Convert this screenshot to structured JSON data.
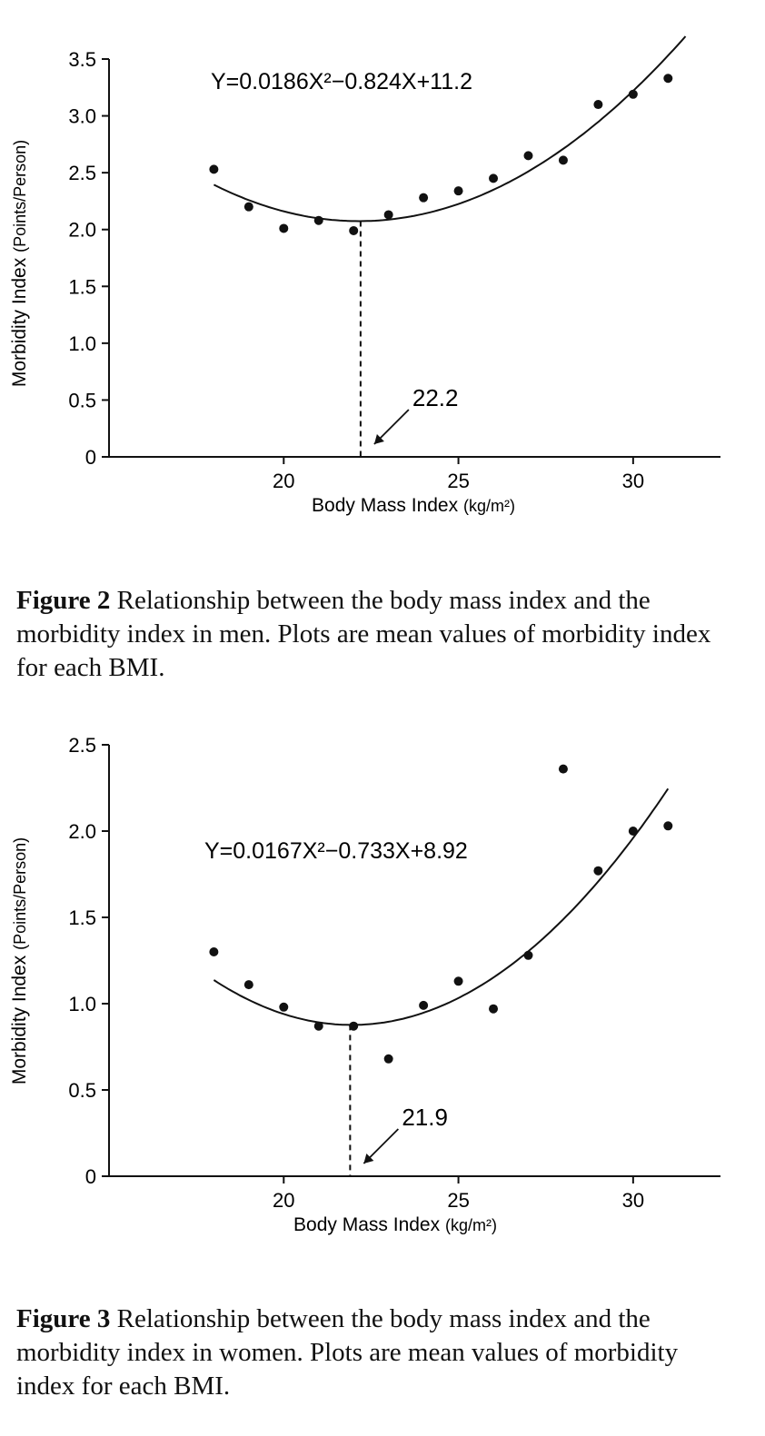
{
  "chart_data": [
    {
      "type": "scatter",
      "title": "",
      "equation": "Y=0.0186X²−0.824X+11.2",
      "xlabel": "Body Mass Index",
      "xlabel_unit": "(kg/m²)",
      "ylabel": "Morbidity Index",
      "ylabel_unit": "(Points/Person)",
      "xlim": [
        15,
        32.5
      ],
      "ylim": [
        0,
        3.5
      ],
      "x_ticks": [
        20,
        25,
        30
      ],
      "y_ticks": [
        0,
        0.5,
        1.0,
        1.5,
        2.0,
        2.5,
        3.0,
        3.5
      ],
      "y_tick_labels": [
        "0",
        "0.5",
        "1.0",
        "1.5",
        "2.0",
        "2.5",
        "3.0",
        "3.5"
      ],
      "grid": false,
      "points": [
        {
          "x": 18,
          "y": 2.53
        },
        {
          "x": 19,
          "y": 2.2
        },
        {
          "x": 20,
          "y": 2.01
        },
        {
          "x": 21,
          "y": 2.08
        },
        {
          "x": 22,
          "y": 1.99
        },
        {
          "x": 23,
          "y": 2.13
        },
        {
          "x": 24,
          "y": 2.28
        },
        {
          "x": 25,
          "y": 2.34
        },
        {
          "x": 26,
          "y": 2.45
        },
        {
          "x": 27,
          "y": 2.65
        },
        {
          "x": 28,
          "y": 2.61
        },
        {
          "x": 29,
          "y": 3.1
        },
        {
          "x": 30,
          "y": 3.19
        },
        {
          "x": 31,
          "y": 3.33
        }
      ],
      "fit": {
        "a": 0.0186,
        "b": -0.824,
        "c": 11.2,
        "x_range": [
          18,
          31.5
        ]
      },
      "minimum": {
        "x": 22.2,
        "label": "22.2"
      },
      "caption_label": "Figure 2",
      "caption_text": " Relationship between the body mass index and the morbidity index in men. Plots are mean values of morbidity index for each BMI."
    },
    {
      "type": "scatter",
      "title": "",
      "equation": "Y=0.0167X²−0.733X+8.92",
      "xlabel": "Body Mass Index",
      "xlabel_unit": "(kg/m²)",
      "ylabel": "Morbidity Index",
      "ylabel_unit": "(Points/Person)",
      "xlim": [
        15,
        32.5
      ],
      "ylim": [
        0,
        2.5
      ],
      "x_ticks": [
        20,
        25,
        30
      ],
      "y_ticks": [
        0,
        0.5,
        1.0,
        1.5,
        2.0,
        2.5
      ],
      "y_tick_labels": [
        "0",
        "0.5",
        "1.0",
        "1.5",
        "2.0",
        "2.5"
      ],
      "grid": false,
      "points": [
        {
          "x": 18,
          "y": 1.3
        },
        {
          "x": 19,
          "y": 1.11
        },
        {
          "x": 20,
          "y": 0.98
        },
        {
          "x": 21,
          "y": 0.87
        },
        {
          "x": 22,
          "y": 0.87
        },
        {
          "x": 23,
          "y": 0.68
        },
        {
          "x": 24,
          "y": 0.99
        },
        {
          "x": 25,
          "y": 1.13
        },
        {
          "x": 26,
          "y": 0.97
        },
        {
          "x": 27,
          "y": 1.28
        },
        {
          "x": 28,
          "y": 2.36
        },
        {
          "x": 29,
          "y": 1.77
        },
        {
          "x": 30,
          "y": 2.0
        },
        {
          "x": 31,
          "y": 2.03
        }
      ],
      "fit": {
        "a": 0.0167,
        "b": -0.733,
        "c": 8.92,
        "x_range": [
          18,
          31
        ]
      },
      "minimum": {
        "x": 21.9,
        "label": "21.9"
      },
      "caption_label": "Figure 3",
      "caption_text": " Relationship between the body mass index and the morbidity index in women. Plots are mean values of morbidity index for each BMI."
    }
  ]
}
